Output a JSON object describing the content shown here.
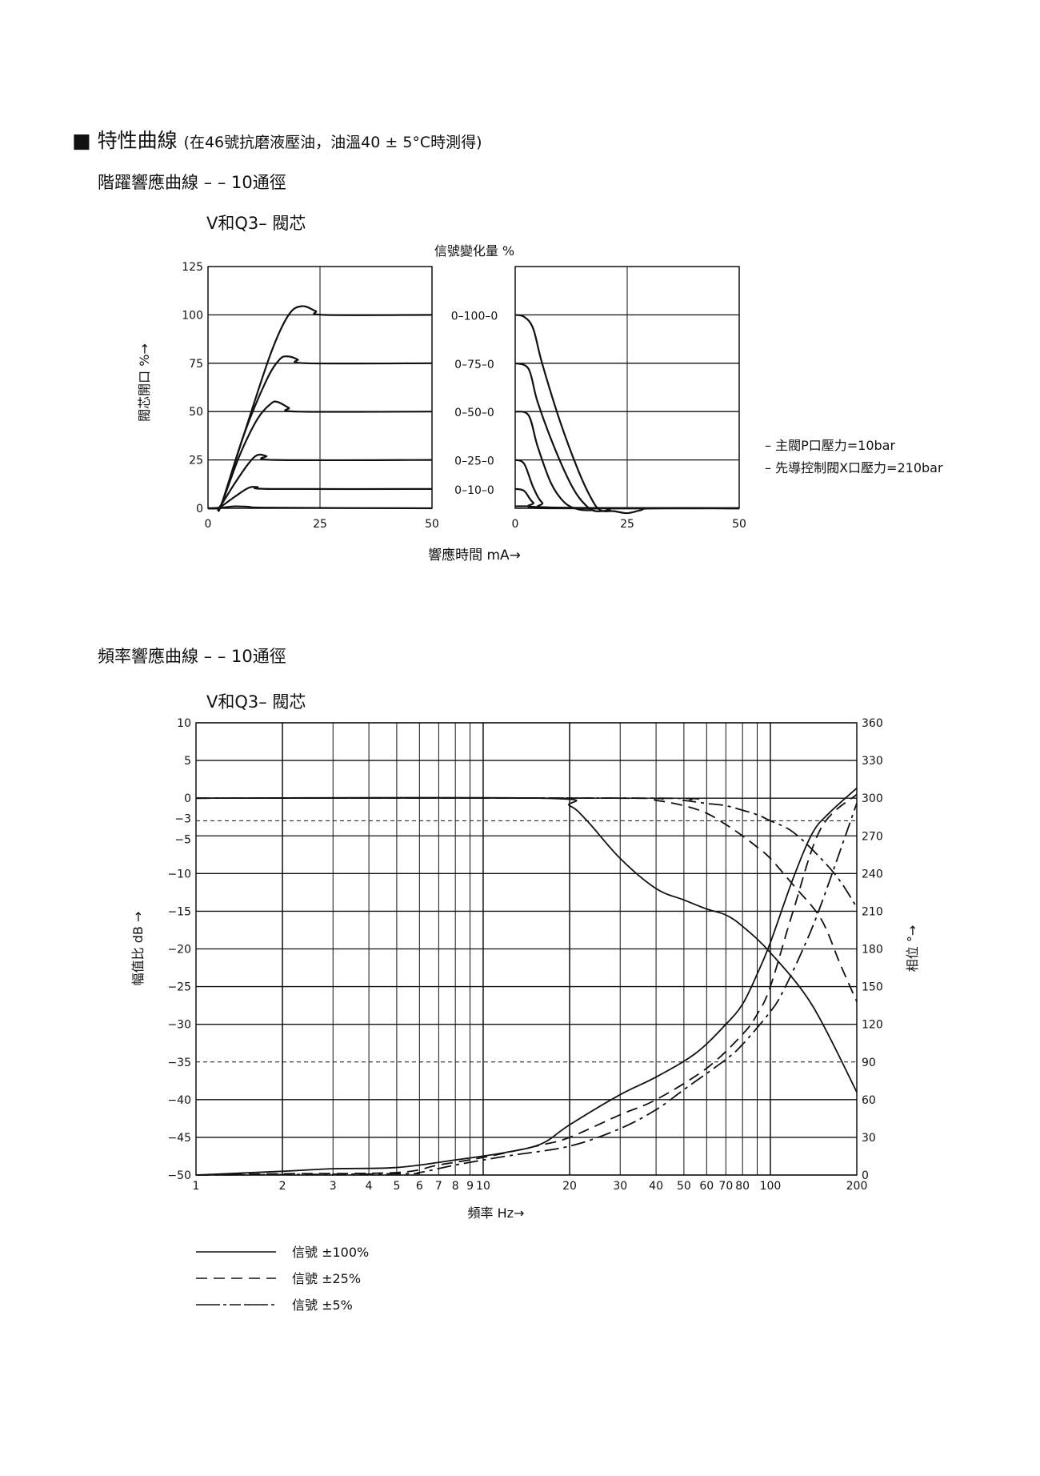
{
  "page": {
    "title_bullet": "■",
    "title": "特性曲線",
    "title_note": "(在46號抗磨液壓油，油溫40 ± 5°C時測得)"
  },
  "chart_data": [
    {
      "type": "line",
      "section_title": "階躍響應曲線 – – 10通徑",
      "title": "V和Q3– 閥芯",
      "top_label": "信號變化量 %",
      "ylabel": "閥芯開口 %→",
      "xlabel": "響應時間 mA→",
      "xlim": [
        0,
        50
      ],
      "ylim": [
        0,
        125
      ],
      "x_ticks": [
        "0",
        "25",
        "50"
      ],
      "y_ticks": [
        "0",
        "25",
        "50",
        "75",
        "100",
        "125"
      ],
      "grid": true,
      "signal_labels": [
        "0–100–0",
        "0–75–0",
        "0–50–0",
        "0–25–0",
        "0–10–0"
      ],
      "signal_levels": [
        100,
        75,
        50,
        25,
        10
      ],
      "notes": [
        "– 主閥P口壓力=10bar",
        "– 先導控制閥X口壓力=210bar"
      ],
      "panels": [
        {
          "name": "",
          "series": [
            {
              "level": 100,
              "points": [
                [
                  0,
                  0
                ],
                [
                  2,
                  0
                ],
                [
                  3,
                  2
                ],
                [
                  8,
                  38
                ],
                [
                  14,
                  80
                ],
                [
                  18,
                  100
                ],
                [
                  21,
                  104.5
                ],
                [
                  24,
                  102
                ],
                [
                  26,
                  100
                ],
                [
                  50,
                  100
                ]
              ]
            },
            {
              "level": 75,
              "points": [
                [
                  0,
                  0
                ],
                [
                  2,
                  0
                ],
                [
                  3,
                  2
                ],
                [
                  8,
                  38
                ],
                [
                  13,
                  66
                ],
                [
                  16,
                  77
                ],
                [
                  18,
                  78.5
                ],
                [
                  20,
                  77
                ],
                [
                  22,
                  75
                ],
                [
                  50,
                  75
                ]
              ]
            },
            {
              "level": 50,
              "points": [
                [
                  0,
                  0
                ],
                [
                  2,
                  0
                ],
                [
                  3,
                  2
                ],
                [
                  7,
                  27
                ],
                [
                  11,
                  46
                ],
                [
                  14,
                  54
                ],
                [
                  15.5,
                  55
                ],
                [
                  18,
                  52
                ],
                [
                  20,
                  50
                ],
                [
                  50,
                  50
                ]
              ]
            },
            {
              "level": 25,
              "points": [
                [
                  0,
                  0
                ],
                [
                  2,
                  0
                ],
                [
                  3,
                  2
                ],
                [
                  6,
                  13
                ],
                [
                  9,
                  23
                ],
                [
                  11,
                  27.5
                ],
                [
                  13,
                  27
                ],
                [
                  15,
                  25
                ],
                [
                  50,
                  25
                ]
              ]
            },
            {
              "level": 10,
              "points": [
                [
                  0,
                  0
                ],
                [
                  2,
                  0
                ],
                [
                  3,
                  1
                ],
                [
                  6,
                  6
                ],
                [
                  9,
                  10.5
                ],
                [
                  11,
                  11
                ],
                [
                  14,
                  10
                ],
                [
                  50,
                  10
                ]
              ]
            },
            {
              "level": 0,
              "points": [
                [
                  0,
                  0
                ],
                [
                  3,
                  0.3
                ],
                [
                  6,
                  1
                ],
                [
                  9,
                  0.8
                ],
                [
                  14,
                  0.3
                ],
                [
                  50,
                  0
                ]
              ]
            }
          ]
        },
        {
          "name": "",
          "series": [
            {
              "level": 100,
              "points": [
                [
                  0,
                  100
                ],
                [
                  2,
                  99
                ],
                [
                  4,
                  93
                ],
                [
                  6,
                  75
                ],
                [
                  10,
                  45
                ],
                [
                  14,
                  20
                ],
                [
                  17,
                  5
                ],
                [
                  19,
                  -1
                ],
                [
                  22,
                  -1.5
                ],
                [
                  25,
                  -2.5
                ],
                [
                  28,
                  -1
                ],
                [
                  31,
                  0
                ],
                [
                  50,
                  0
                ]
              ]
            },
            {
              "level": 75,
              "points": [
                [
                  0,
                  75
                ],
                [
                  3,
                  72
                ],
                [
                  5,
                  55
                ],
                [
                  9,
                  30
                ],
                [
                  13,
                  10
                ],
                [
                  16,
                  1
                ],
                [
                  18,
                  -1.5
                ],
                [
                  21,
                  -1
                ],
                [
                  23,
                  0
                ],
                [
                  50,
                  0
                ]
              ]
            },
            {
              "level": 50,
              "points": [
                [
                  0,
                  50
                ],
                [
                  3,
                  48
                ],
                [
                  5,
                  32
                ],
                [
                  8,
                  13
                ],
                [
                  11,
                  3
                ],
                [
                  14,
                  -0.5
                ],
                [
                  17,
                  -1
                ],
                [
                  20,
                  0
                ],
                [
                  50,
                  0
                ]
              ]
            },
            {
              "level": 25,
              "points": [
                [
                  0,
                  25
                ],
                [
                  2,
                  23
                ],
                [
                  4,
                  11
                ],
                [
                  6,
                  3
                ],
                [
                  9,
                  0.3
                ],
                [
                  50,
                  0
                ]
              ]
            },
            {
              "level": 10,
              "points": [
                [
                  0,
                  10
                ],
                [
                  2,
                  9
                ],
                [
                  4,
                  3
                ],
                [
                  7,
                  0.5
                ],
                [
                  50,
                  0
                ]
              ]
            },
            {
              "level": 0,
              "points": [
                [
                  0,
                  1
                ],
                [
                  3,
                  1
                ],
                [
                  8,
                  0
                ],
                [
                  50,
                  0
                ]
              ]
            }
          ]
        }
      ]
    },
    {
      "type": "line",
      "section_title": "頻率響應曲線 – – 10通徑",
      "title": "V和Q3– 閥芯",
      "xlabel": "頻率 Hz→",
      "ylabel": "幅值比 dB →",
      "y2label": "相位 °→",
      "x_scale": "log",
      "xlim": [
        1,
        200
      ],
      "ylim": [
        -50,
        10
      ],
      "y2lim": [
        0,
        360
      ],
      "x_grid": [
        1,
        2,
        3,
        4,
        5,
        6,
        7,
        8,
        9,
        10,
        20,
        30,
        40,
        50,
        60,
        70,
        80,
        90,
        100,
        200
      ],
      "x_ticks": [
        "1",
        "2",
        "3",
        "4",
        "5",
        "6",
        "7",
        "8",
        "9",
        "10",
        "20",
        "30",
        "40",
        "50",
        "60",
        "70",
        "80",
        "100",
        "200"
      ],
      "y_ticks": [
        "10",
        "5",
        "0",
        "-3",
        "-5",
        "-10",
        "-15",
        "-20",
        "-25",
        "-30",
        "-35",
        "-40",
        "-45",
        "-50"
      ],
      "y2_ticks": [
        "360",
        "330",
        "300",
        "270",
        "240",
        "210",
        "180",
        "150",
        "120",
        "90",
        "60",
        "30",
        "0"
      ],
      "reference_lines_db": [
        -3,
        -35
      ],
      "grid": true,
      "legend_placement": "bottom-left",
      "series": [
        {
          "name": "信號 ±100%",
          "style": "solid",
          "amplitude_db": [
            [
              1,
              0
            ],
            [
              16,
              0
            ],
            [
              20,
              -1
            ],
            [
              23,
              -3
            ],
            [
              30,
              -8
            ],
            [
              40,
              -12
            ],
            [
              50,
              -13.5
            ],
            [
              60,
              -14.7
            ],
            [
              70,
              -15.5
            ],
            [
              80,
              -17
            ],
            [
              100,
              -20.5
            ],
            [
              140,
              -27.5
            ],
            [
              200,
              -39
            ]
          ],
          "phase_deg": [
            [
              1,
              0
            ],
            [
              2,
              3
            ],
            [
              3,
              5
            ],
            [
              5,
              6
            ],
            [
              8,
              12
            ],
            [
              12,
              18
            ],
            [
              16,
              25
            ],
            [
              20,
              40
            ],
            [
              30,
              64
            ],
            [
              40,
              78
            ],
            [
              55,
              97
            ],
            [
              70,
              120
            ],
            [
              80,
              136
            ],
            [
              90,
              160
            ],
            [
              100,
              185
            ],
            [
              120,
              236
            ],
            [
              140,
              272
            ],
            [
              160,
              288
            ],
            [
              200,
              308
            ]
          ]
        },
        {
          "name": "信號 ±25%",
          "style": "dashed",
          "amplitude_db": [
            [
              1,
              0
            ],
            [
              30,
              0
            ],
            [
              40,
              -0.3
            ],
            [
              50,
              -1
            ],
            [
              60,
              -2
            ],
            [
              70,
              -3.5
            ],
            [
              80,
              -5
            ],
            [
              90,
              -6.5
            ],
            [
              100,
              -8
            ],
            [
              120,
              -11.5
            ],
            [
              150,
              -16
            ],
            [
              175,
              -22
            ],
            [
              200,
              -27
            ]
          ],
          "phase_deg": [
            [
              1,
              0
            ],
            [
              2,
              1
            ],
            [
              5,
              2
            ],
            [
              7,
              8
            ],
            [
              10,
              14
            ],
            [
              16,
              24
            ],
            [
              20,
              30
            ],
            [
              30,
              48
            ],
            [
              40,
              60
            ],
            [
              60,
              85
            ],
            [
              80,
              112
            ],
            [
              90,
              128
            ],
            [
              100,
              150
            ],
            [
              120,
              210
            ],
            [
              150,
              276
            ],
            [
              200,
              303
            ]
          ]
        },
        {
          "name": "信號 ±5%",
          "style": "dash-dot",
          "amplitude_db": [
            [
              1,
              0
            ],
            [
              40,
              0
            ],
            [
              50,
              -0.3
            ],
            [
              60,
              -0.7
            ],
            [
              70,
              -1
            ],
            [
              80,
              -1.6
            ],
            [
              90,
              -2.2
            ],
            [
              100,
              -3
            ],
            [
              120,
              -4.5
            ],
            [
              150,
              -8
            ],
            [
              175,
              -11
            ],
            [
              200,
              -14.5
            ]
          ],
          "phase_deg": [
            [
              1,
              0
            ],
            [
              5,
              1
            ],
            [
              6,
              2
            ],
            [
              8,
              8
            ],
            [
              12,
              15
            ],
            [
              20,
              23
            ],
            [
              30,
              37
            ],
            [
              40,
              52
            ],
            [
              50,
              68
            ],
            [
              70,
              92
            ],
            [
              80,
              104
            ],
            [
              100,
              130
            ],
            [
              110,
              145
            ],
            [
              130,
              180
            ],
            [
              150,
              215
            ],
            [
              200,
              296
            ]
          ]
        }
      ]
    }
  ]
}
